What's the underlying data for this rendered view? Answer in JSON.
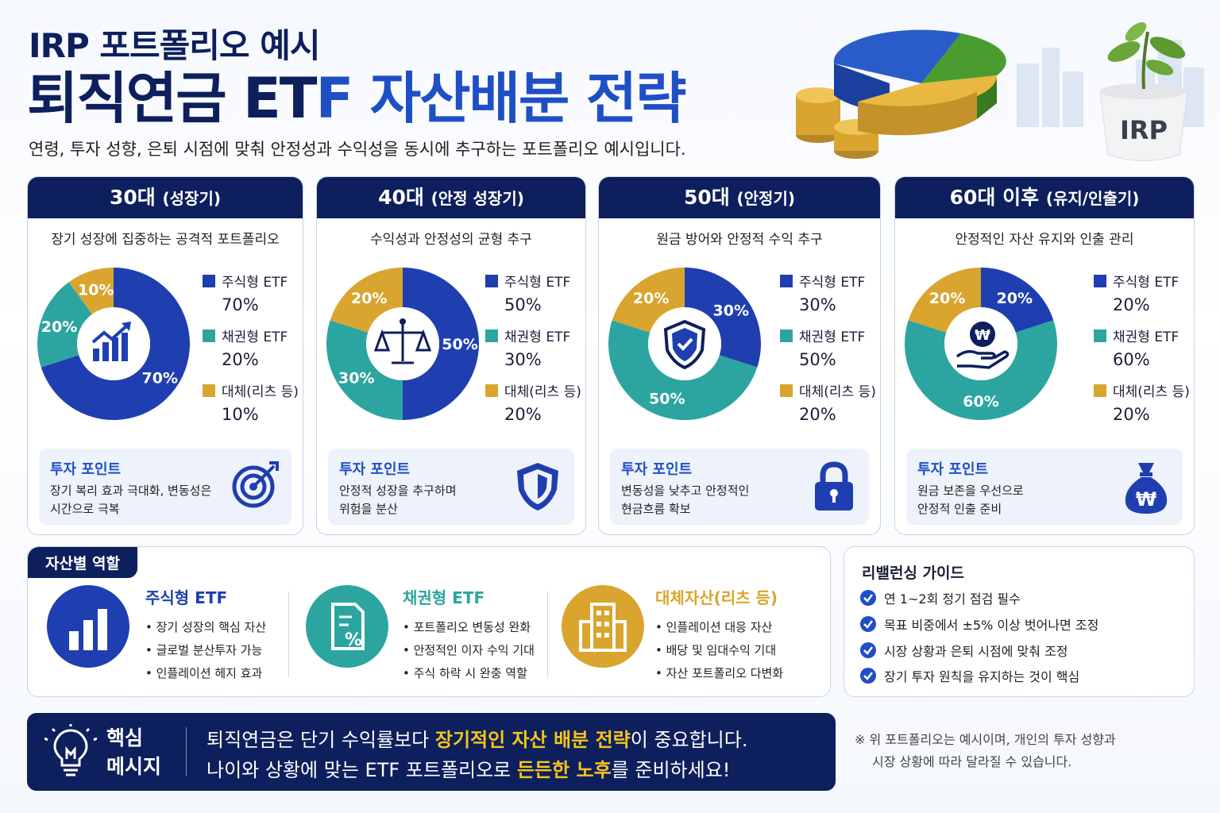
{
  "header": {
    "title_line1": "IRP 포트폴리오 예시",
    "title_line2a": "퇴직연금 ET",
    "title_line2b": "F 자산배분 전략",
    "subtitle": "연령, 투자 성향, 은퇴 시점에 맞춰 안정성과 수익성을 동시에 추구하는 포트폴리오 예시입니다.",
    "pot_label": "IRP"
  },
  "colors": {
    "navy": "#0d1f5c",
    "stock": "#1f3fb0",
    "bond": "#2ca5a0",
    "alt": "#d9a52e"
  },
  "cards": [
    {
      "head": "30대",
      "head_sub": "(성장기)",
      "desc": "장기 성장에 집중하는 공격적 포트폴리오",
      "legend": [
        {
          "name": "주식형 ETF",
          "value": "70%"
        },
        {
          "name": "채권형 ETF",
          "value": "20%"
        },
        {
          "name": "대체(리츠 등)",
          "value": "10%"
        }
      ],
      "slices": [
        70,
        20,
        10
      ],
      "slice_labels": [
        "70%",
        "20%",
        "10%"
      ],
      "icon": "growth-chart-icon",
      "point_title": "투자 포인트",
      "point_l1": "장기 복리 효과 극대화, 변동성은",
      "point_l2": "시간으로 극복",
      "point_icon": "target-icon"
    },
    {
      "head": "40대",
      "head_sub": "(안정 성장기)",
      "desc": "수익성과 안정성의 균형 추구",
      "legend": [
        {
          "name": "주식형 ETF",
          "value": "50%"
        },
        {
          "name": "채권형 ETF",
          "value": "30%"
        },
        {
          "name": "대체(리츠 등)",
          "value": "20%"
        }
      ],
      "slices": [
        50,
        30,
        20
      ],
      "slice_labels": [
        "50%",
        "30%",
        "20%"
      ],
      "icon": "balance-scale-icon",
      "point_title": "투자 포인트",
      "point_l1": "안정적 성장을 추구하며",
      "point_l2": "위험을 분산",
      "point_icon": "shield-icon"
    },
    {
      "head": "50대",
      "head_sub": "(안정기)",
      "desc": "원금 방어와 안정적 수익 추구",
      "legend": [
        {
          "name": "주식형 ETF",
          "value": "30%"
        },
        {
          "name": "채권형 ETF",
          "value": "50%"
        },
        {
          "name": "대체(리츠 등)",
          "value": "20%"
        }
      ],
      "slices": [
        30,
        50,
        20
      ],
      "slice_labels": [
        "30%",
        "50%",
        "20%"
      ],
      "icon": "shield-check-icon",
      "point_title": "투자 포인트",
      "point_l1": "변동성을 낮추고 안정적인",
      "point_l2": "현금흐름 확보",
      "point_icon": "lock-icon"
    },
    {
      "head": "60대 이후",
      "head_sub": "(유지/인출기)",
      "desc": "안정적인 자산 유지와 인출 관리",
      "legend": [
        {
          "name": "주식형 ETF",
          "value": "20%"
        },
        {
          "name": "채권형 ETF",
          "value": "60%"
        },
        {
          "name": "대체(리츠 등)",
          "value": "20%"
        }
      ],
      "slices": [
        20,
        60,
        20
      ],
      "slice_labels": [
        "20%",
        "60%",
        "20%"
      ],
      "icon": "won-hand-icon",
      "point_title": "투자 포인트",
      "point_l1": "원금 보존을 우선으로",
      "point_l2": "안정적 인출 준비",
      "point_icon": "money-bag-icon"
    }
  ],
  "roles": {
    "tag": "자산별 역할",
    "items": [
      {
        "title": "주식형 ETF",
        "b1": "• 장기 성장의 핵심 자산",
        "b2": "• 글로벌 분산투자 가능",
        "b3": "• 인플레이션 헤지 효과"
      },
      {
        "title": "채권형 ETF",
        "b1": "• 포트폴리오 변동성 완화",
        "b2": "• 안정적인 이자 수익 기대",
        "b3": "• 주식 하락 시 완충 역할"
      },
      {
        "title": "대체자산(리츠 등)",
        "b1": "• 인플레이션 대응 자산",
        "b2": "• 배당 및 임대수익 기대",
        "b3": "• 자산 포트폴리오 다변화"
      }
    ]
  },
  "rebalance": {
    "title": "리밸런싱 가이드",
    "items": [
      "연 1~2회 정기 점검 필수",
      "목표 비중에서 ±5% 이상 벗어나면 조정",
      "시장 상황과 은퇴 시점에 맞춰 조정",
      "장기 투자 원칙을 유지하는 것이 핵심"
    ]
  },
  "key": {
    "label1": "핵심",
    "label2": "메시지",
    "l1_pre": "퇴직연금은 단기 수익률보다 ",
    "l1_hl": "장기적인 자산 배분 전략",
    "l1_post": "이 중요합니다.",
    "l2_pre": "나이와 상황에 맞는 ETF 포트폴리오로 ",
    "l2_hl": "든든한 노후",
    "l2_post": "를 준비하세요!"
  },
  "note": {
    "l1": "※ 위 포트폴리오는 예시이며, 개인의 투자 성향과",
    "l2": "시장 상황에 따라 달라질 수 있습니다."
  }
}
